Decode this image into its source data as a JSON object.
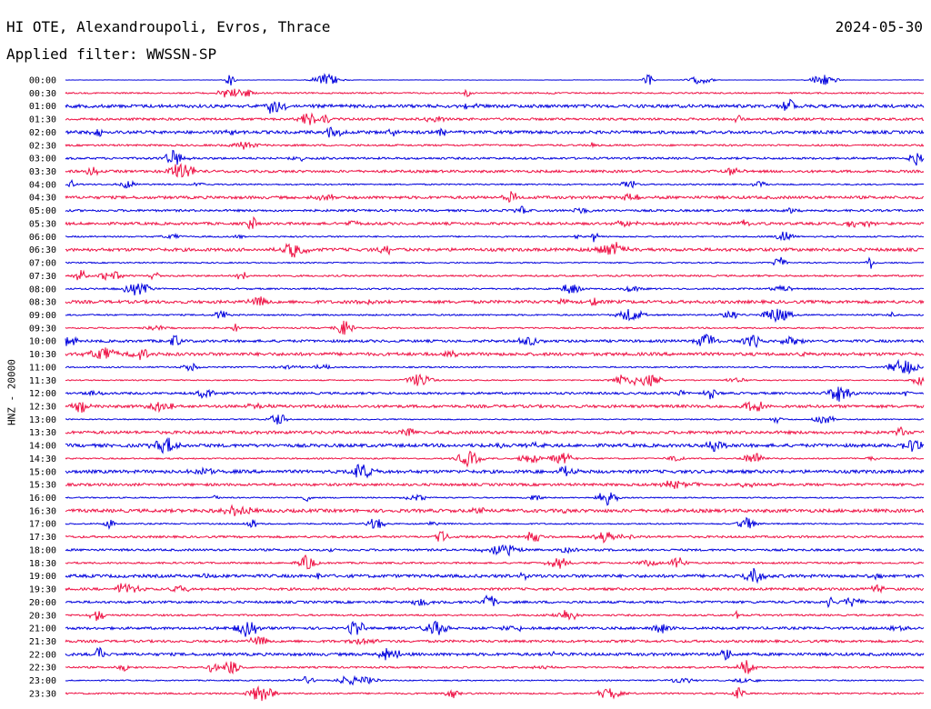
{
  "header": {
    "station_title": "HI OTE, Alexandroupoli, Evros, Thrace",
    "date": "2024-05-30",
    "filter_label": "Applied filter: WWSSN-SP"
  },
  "axis": {
    "ylabel": "HNZ - 20000"
  },
  "colors": {
    "series_a": "#0000dd",
    "series_b": "#ee1144"
  },
  "chart_data": {
    "type": "line",
    "title": "HI OTE, Alexandroupoli, Evros, Thrace",
    "subtitle": "Applied filter: WWSSN-SP",
    "ylabel": "HNZ - 20000",
    "xlabel": "",
    "grid": false,
    "legend": "none",
    "rows": [
      {
        "label": "00:00",
        "color": "#0000dd"
      },
      {
        "label": "00:30",
        "color": "#ee1144"
      },
      {
        "label": "01:00",
        "color": "#0000dd"
      },
      {
        "label": "01:30",
        "color": "#ee1144"
      },
      {
        "label": "02:00",
        "color": "#0000dd"
      },
      {
        "label": "02:30",
        "color": "#ee1144"
      },
      {
        "label": "03:00",
        "color": "#0000dd"
      },
      {
        "label": "03:30",
        "color": "#ee1144"
      },
      {
        "label": "04:00",
        "color": "#0000dd"
      },
      {
        "label": "04:30",
        "color": "#ee1144"
      },
      {
        "label": "05:00",
        "color": "#0000dd"
      },
      {
        "label": "05:30",
        "color": "#ee1144"
      },
      {
        "label": "06:00",
        "color": "#0000dd"
      },
      {
        "label": "06:30",
        "color": "#ee1144"
      },
      {
        "label": "07:00",
        "color": "#0000dd"
      },
      {
        "label": "07:30",
        "color": "#ee1144"
      },
      {
        "label": "08:00",
        "color": "#0000dd"
      },
      {
        "label": "08:30",
        "color": "#ee1144"
      },
      {
        "label": "09:00",
        "color": "#0000dd"
      },
      {
        "label": "09:30",
        "color": "#ee1144"
      },
      {
        "label": "10:00",
        "color": "#0000dd"
      },
      {
        "label": "10:30",
        "color": "#ee1144"
      },
      {
        "label": "11:00",
        "color": "#0000dd"
      },
      {
        "label": "11:30",
        "color": "#ee1144"
      },
      {
        "label": "12:00",
        "color": "#0000dd"
      },
      {
        "label": "12:30",
        "color": "#ee1144"
      },
      {
        "label": "13:00",
        "color": "#0000dd"
      },
      {
        "label": "13:30",
        "color": "#ee1144"
      },
      {
        "label": "14:00",
        "color": "#0000dd"
      },
      {
        "label": "14:30",
        "color": "#ee1144"
      },
      {
        "label": "15:00",
        "color": "#0000dd"
      },
      {
        "label": "15:30",
        "color": "#ee1144"
      },
      {
        "label": "16:00",
        "color": "#0000dd"
      },
      {
        "label": "16:30",
        "color": "#ee1144"
      },
      {
        "label": "17:00",
        "color": "#0000dd"
      },
      {
        "label": "17:30",
        "color": "#ee1144"
      },
      {
        "label": "18:00",
        "color": "#0000dd"
      },
      {
        "label": "18:30",
        "color": "#ee1144"
      },
      {
        "label": "19:00",
        "color": "#0000dd"
      },
      {
        "label": "19:30",
        "color": "#ee1144"
      },
      {
        "label": "20:00",
        "color": "#0000dd"
      },
      {
        "label": "20:30",
        "color": "#ee1144"
      },
      {
        "label": "21:00",
        "color": "#0000dd"
      },
      {
        "label": "21:30",
        "color": "#ee1144"
      },
      {
        "label": "22:00",
        "color": "#0000dd"
      },
      {
        "label": "22:30",
        "color": "#ee1144"
      },
      {
        "label": "23:00",
        "color": "#0000dd"
      },
      {
        "label": "23:30",
        "color": "#ee1144"
      }
    ]
  }
}
